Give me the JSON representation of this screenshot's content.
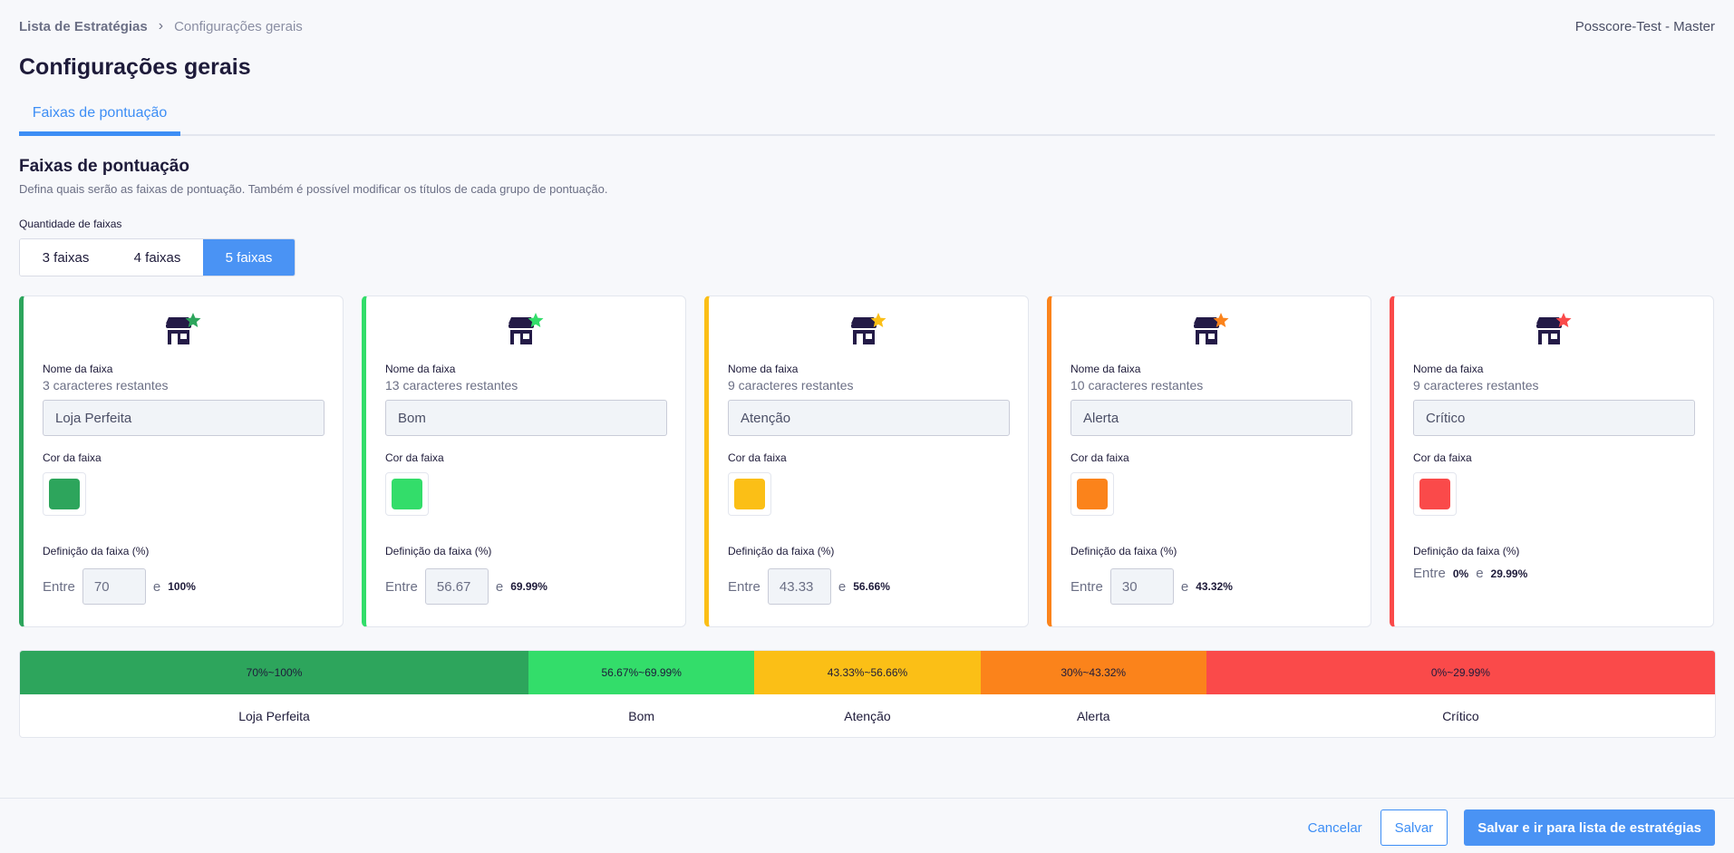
{
  "breadcrumb": {
    "root": "Lista de Estratégias",
    "current": "Configurações gerais"
  },
  "tenant": "Posscore-Test - Master",
  "page_title": "Configurações gerais",
  "tab": "Faixas de pontuação",
  "section": {
    "title": "Faixas de pontuação",
    "description": "Defina quais serão as faixas de pontuação. Também é possível modificar os títulos de cada grupo de pontuação.",
    "quantity_label": "Quantidade de faixas",
    "quantity_options": [
      "3 faixas",
      "4 faixas",
      "5 faixas"
    ],
    "quantity_selected": "5 faixas"
  },
  "cards": [
    {
      "color": "#2da55c",
      "name_label": "Nome da faixa",
      "remaining": "3 caracteres restantes",
      "name": "Loja Perfeita",
      "color_label": "Cor da faixa",
      "definition_label": "Definição da faixa (%)",
      "between": "Entre",
      "min": "70",
      "and": "e",
      "max": "100%"
    },
    {
      "color": "#33dd6a",
      "name_label": "Nome da faixa",
      "remaining": "13 caracteres restantes",
      "name": "Bom",
      "color_label": "Cor da faixa",
      "definition_label": "Definição da faixa (%)",
      "between": "Entre",
      "min": "56.67",
      "and": "e",
      "max": "69.99%"
    },
    {
      "color": "#fbbf16",
      "name_label": "Nome da faixa",
      "remaining": "9 caracteres restantes",
      "name": "Atenção",
      "color_label": "Cor da faixa",
      "definition_label": "Definição da faixa (%)",
      "between": "Entre",
      "min": "43.33",
      "and": "e",
      "max": "56.66%"
    },
    {
      "color": "#fb831b",
      "name_label": "Nome da faixa",
      "remaining": "10 caracteres restantes",
      "name": "Alerta",
      "color_label": "Cor da faixa",
      "definition_label": "Definição da faixa (%)",
      "between": "Entre",
      "min": "30",
      "and": "e",
      "max": "43.32%"
    },
    {
      "color": "#fa4a4a",
      "name_label": "Nome da faixa",
      "remaining": "9 caracteres restantes",
      "name": "Crítico",
      "color_label": "Cor da faixa",
      "definition_label": "Definição da faixa (%)",
      "between": "Entre",
      "min": "0%",
      "and": "e",
      "max": "29.99%"
    }
  ],
  "summary": [
    {
      "range": "70%~100%",
      "name": "Loja Perfeita",
      "color": "#2da55c",
      "share": 30
    },
    {
      "range": "56.67%~69.99%",
      "name": "Bom",
      "color": "#33dd6a",
      "share": 13.33
    },
    {
      "range": "43.33%~56.66%",
      "name": "Atenção",
      "color": "#fbbf16",
      "share": 13.33
    },
    {
      "range": "30%~43.32%",
      "name": "Alerta",
      "color": "#fb831b",
      "share": 13.33
    },
    {
      "range": "0%~29.99%",
      "name": "Crítico",
      "color": "#fa4a4a",
      "share": 30
    }
  ],
  "footer": {
    "cancel": "Cancelar",
    "save": "Salvar",
    "save_and_go": "Salvar e ir para lista de estratégias"
  },
  "icons": {
    "card_icon": "store-star-icon",
    "breadcrumb_separator": "chevron-right-icon"
  }
}
